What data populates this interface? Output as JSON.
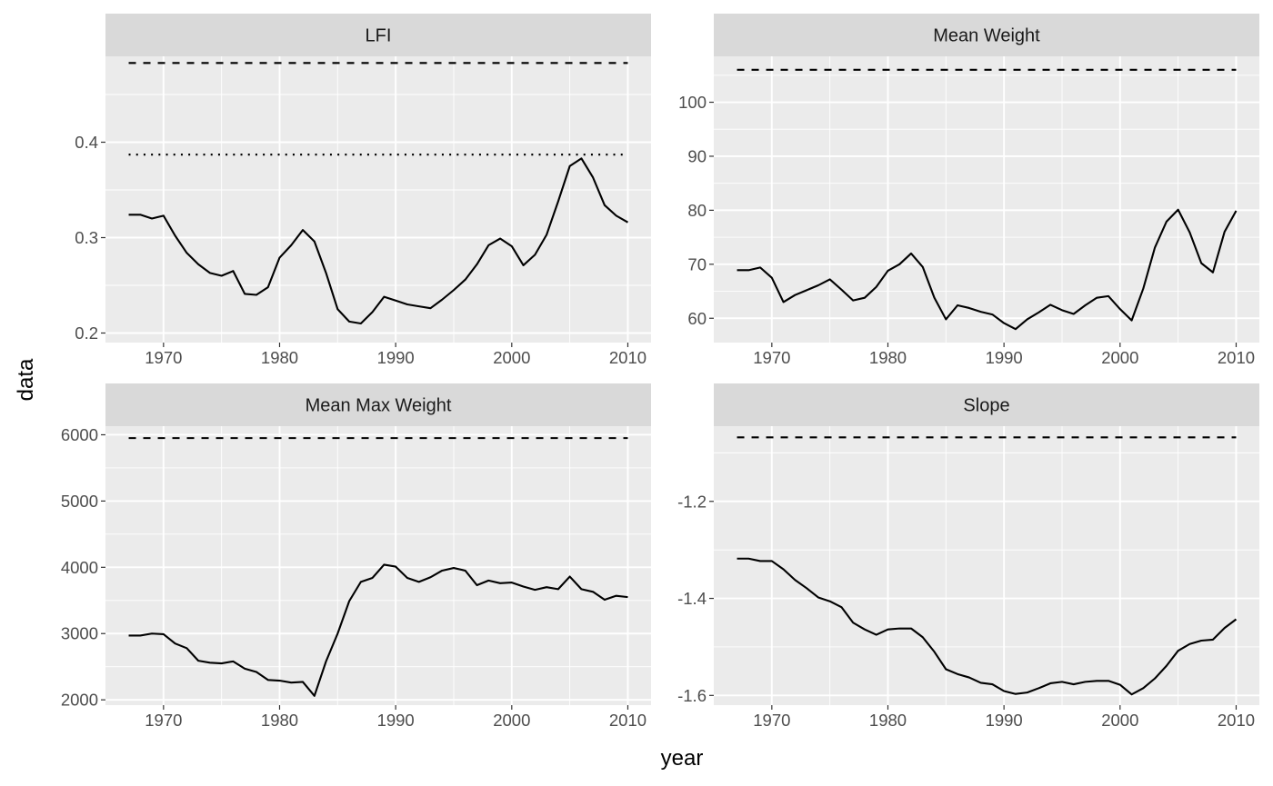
{
  "axes": {
    "xlabel": "year",
    "ylabel": "data"
  },
  "colors": {
    "panel_bg": "#ebebeb",
    "strip_bg": "#d9d9d9",
    "grid": "#ffffff",
    "line": "#000000",
    "tick_text": "#4d4d4d"
  },
  "chart_data": [
    {
      "type": "line",
      "title": "LFI",
      "xlim": [
        1965,
        2012
      ],
      "ylim": [
        0.19,
        0.49
      ],
      "x_ticks": [
        1970,
        1980,
        1990,
        2000,
        2010
      ],
      "x_tick_labels": [
        "1970",
        "1980",
        "1990",
        "2000",
        "2010"
      ],
      "y_ticks": [
        0.2,
        0.3,
        0.4
      ],
      "y_tick_labels": [
        "0.2",
        "0.3",
        "0.4"
      ],
      "grid": true,
      "x": [
        1967,
        1968,
        1969,
        1970,
        1971,
        1972,
        1973,
        1974,
        1975,
        1976,
        1977,
        1978,
        1979,
        1980,
        1981,
        1982,
        1983,
        1984,
        1985,
        1986,
        1987,
        1988,
        1989,
        1990,
        1991,
        1992,
        1993,
        1994,
        1995,
        1996,
        1997,
        1998,
        1999,
        2000,
        2001,
        2002,
        2003,
        2004,
        2005,
        2006,
        2007,
        2008,
        2009,
        2010
      ],
      "series": [
        {
          "style": "solid",
          "values": [
            0.324,
            0.324,
            0.32,
            0.323,
            0.302,
            0.284,
            0.272,
            0.263,
            0.26,
            0.265,
            0.241,
            0.24,
            0.248,
            0.279,
            0.292,
            0.308,
            0.296,
            0.263,
            0.225,
            0.212,
            0.21,
            0.222,
            0.238,
            0.234,
            0.23,
            0.228,
            0.226,
            0.235,
            0.245,
            0.256,
            0.272,
            0.292,
            0.299,
            0.291,
            0.271,
            0.282,
            0.303,
            0.338,
            0.375,
            0.383,
            0.363,
            0.334,
            0.323,
            0.316
          ]
        },
        {
          "style": "dashed",
          "values": [
            0.483,
            0.483
          ],
          "x": [
            1967,
            2010
          ]
        },
        {
          "style": "dotted",
          "values": [
            0.387,
            0.387
          ],
          "x": [
            1967,
            2010
          ]
        }
      ]
    },
    {
      "type": "line",
      "title": "Mean Weight",
      "xlim": [
        1965,
        2012
      ],
      "ylim": [
        55.5,
        108.5
      ],
      "x_ticks": [
        1970,
        1980,
        1990,
        2000,
        2010
      ],
      "x_tick_labels": [
        "1970",
        "1980",
        "1990",
        "2000",
        "2010"
      ],
      "y_ticks": [
        60,
        70,
        80,
        90,
        100
      ],
      "y_tick_labels": [
        "60",
        "70",
        "80",
        "90",
        "100"
      ],
      "grid": true,
      "x": [
        1967,
        1968,
        1969,
        1970,
        1971,
        1972,
        1973,
        1974,
        1975,
        1976,
        1977,
        1978,
        1979,
        1980,
        1981,
        1982,
        1983,
        1984,
        1985,
        1986,
        1987,
        1988,
        1989,
        1990,
        1991,
        1992,
        1993,
        1994,
        1995,
        1996,
        1997,
        1998,
        1999,
        2000,
        2001,
        2002,
        2003,
        2004,
        2005,
        2006,
        2007,
        2008,
        2009,
        2010
      ],
      "series": [
        {
          "style": "solid",
          "values": [
            68.9,
            68.9,
            69.4,
            67.5,
            63.0,
            64.3,
            65.2,
            66.1,
            67.2,
            65.3,
            63.3,
            63.8,
            65.8,
            68.8,
            70.0,
            72.0,
            69.5,
            63.8,
            59.8,
            62.4,
            61.9,
            61.2,
            60.7,
            59.1,
            58.0,
            59.8,
            61.1,
            62.5,
            61.5,
            60.8,
            62.4,
            63.8,
            64.1,
            61.7,
            59.6,
            65.5,
            73.1,
            77.9,
            80.1,
            75.9,
            70.2,
            68.5,
            76.0,
            79.9
          ]
        },
        {
          "style": "dashed",
          "values": [
            106.0,
            106.0
          ],
          "x": [
            1967,
            2010
          ]
        }
      ]
    },
    {
      "type": "line",
      "title": "Mean Max Weight",
      "xlim": [
        1965,
        2012
      ],
      "ylim": [
        1920,
        6130
      ],
      "x_ticks": [
        1970,
        1980,
        1990,
        2000,
        2010
      ],
      "x_tick_labels": [
        "1970",
        "1980",
        "1990",
        "2000",
        "2010"
      ],
      "y_ticks": [
        2000,
        3000,
        4000,
        5000,
        6000
      ],
      "y_tick_labels": [
        "2000",
        "3000",
        "4000",
        "5000",
        "6000"
      ],
      "grid": true,
      "x": [
        1967,
        1968,
        1969,
        1970,
        1971,
        1972,
        1973,
        1974,
        1975,
        1976,
        1977,
        1978,
        1979,
        1980,
        1981,
        1982,
        1983,
        1984,
        1985,
        1986,
        1987,
        1988,
        1989,
        1990,
        1991,
        1992,
        1993,
        1994,
        1995,
        1996,
        1997,
        1998,
        1999,
        2000,
        2001,
        2002,
        2003,
        2004,
        2005,
        2006,
        2007,
        2008,
        2009,
        2010
      ],
      "series": [
        {
          "style": "solid",
          "values": [
            2970,
            2970,
            3000,
            2990,
            2850,
            2780,
            2590,
            2560,
            2550,
            2580,
            2470,
            2420,
            2300,
            2290,
            2260,
            2270,
            2060,
            2580,
            3000,
            3490,
            3780,
            3840,
            4040,
            4010,
            3840,
            3780,
            3850,
            3950,
            3990,
            3950,
            3730,
            3800,
            3760,
            3770,
            3710,
            3660,
            3700,
            3670,
            3860,
            3670,
            3630,
            3510,
            3570,
            3550
          ]
        },
        {
          "style": "dashed",
          "values": [
            5950,
            5950
          ],
          "x": [
            1967,
            2010
          ]
        }
      ]
    },
    {
      "type": "line",
      "title": "Slope",
      "xlim": [
        1965,
        2012
      ],
      "ylim": [
        -1.62,
        -1.045
      ],
      "x_ticks": [
        1970,
        1980,
        1990,
        2000,
        2010
      ],
      "x_tick_labels": [
        "1970",
        "1980",
        "1990",
        "2000",
        "2010"
      ],
      "y_ticks": [
        -1.6,
        -1.4,
        -1.2
      ],
      "y_tick_labels": [
        "-1.6",
        "-1.4",
        "-1.2"
      ],
      "grid": true,
      "x": [
        1967,
        1968,
        1969,
        1970,
        1971,
        1972,
        1973,
        1974,
        1975,
        1976,
        1977,
        1978,
        1979,
        1980,
        1981,
        1982,
        1983,
        1984,
        1985,
        1986,
        1987,
        1988,
        1989,
        1990,
        1991,
        1992,
        1993,
        1994,
        1995,
        1996,
        1997,
        1998,
        1999,
        2000,
        2001,
        2002,
        2003,
        2004,
        2005,
        2006,
        2007,
        2008,
        2009,
        2010
      ],
      "series": [
        {
          "style": "solid",
          "values": [
            -1.318,
            -1.318,
            -1.323,
            -1.323,
            -1.34,
            -1.362,
            -1.379,
            -1.398,
            -1.406,
            -1.418,
            -1.45,
            -1.464,
            -1.475,
            -1.464,
            -1.462,
            -1.462,
            -1.48,
            -1.51,
            -1.546,
            -1.556,
            -1.563,
            -1.574,
            -1.577,
            -1.591,
            -1.597,
            -1.594,
            -1.585,
            -1.575,
            -1.572,
            -1.577,
            -1.572,
            -1.57,
            -1.57,
            -1.578,
            -1.598,
            -1.585,
            -1.565,
            -1.539,
            -1.508,
            -1.494,
            -1.487,
            -1.485,
            -1.461,
            -1.443
          ]
        },
        {
          "style": "dashed",
          "values": [
            -1.068,
            -1.068
          ],
          "x": [
            1967,
            2010
          ]
        }
      ]
    }
  ]
}
